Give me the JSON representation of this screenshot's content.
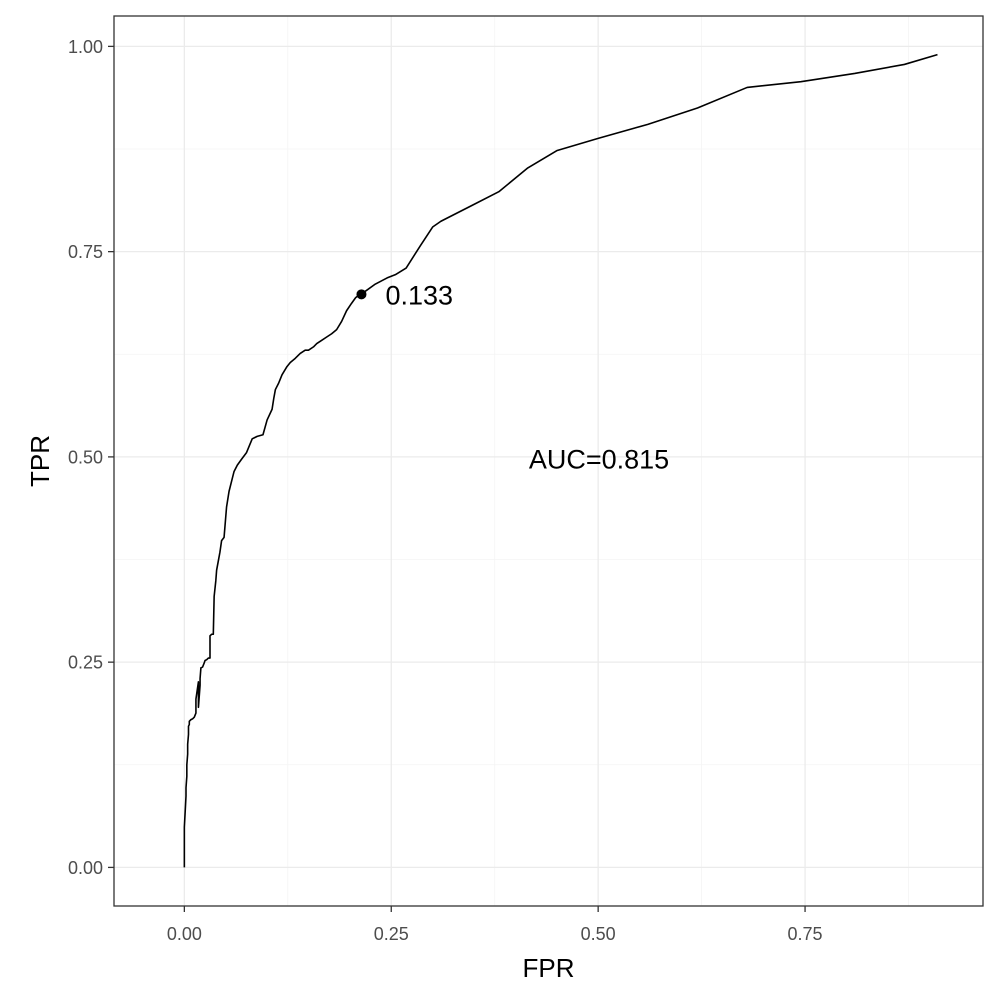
{
  "chart_data": {
    "type": "line",
    "title": "",
    "xlabel": "FPR",
    "ylabel": "TPR",
    "xlim": [
      -0.085,
      0.965
    ],
    "ylim": [
      -0.047,
      1.037
    ],
    "x_ticks": [
      0.0,
      0.25,
      0.5,
      0.75
    ],
    "x_tick_labels": [
      "0.00",
      "0.25",
      "0.50",
      "0.75"
    ],
    "y_ticks": [
      0.0,
      0.25,
      0.5,
      0.75,
      1.0
    ],
    "y_tick_labels": [
      "0.00",
      "0.25",
      "0.50",
      "0.75",
      "1.00"
    ],
    "grid": true,
    "series": [
      {
        "color": "#000000",
        "x": [
          0.0,
          0.0,
          0.001,
          0.002,
          0.002,
          0.003,
          0.003,
          0.004,
          0.004,
          0.005,
          0.005,
          0.006,
          0.006,
          0.008,
          0.01,
          0.012,
          0.014,
          0.014,
          0.015,
          0.017,
          0.017,
          0.019,
          0.019,
          0.02,
          0.022,
          0.024,
          0.025,
          0.027,
          0.029,
          0.031,
          0.031,
          0.032,
          0.033,
          0.035,
          0.036,
          0.038,
          0.039,
          0.041,
          0.043,
          0.045,
          0.048,
          0.051,
          0.054,
          0.058,
          0.06,
          0.064,
          0.069,
          0.075,
          0.082,
          0.088,
          0.095,
          0.1,
          0.106,
          0.108,
          0.11,
          0.114,
          0.118,
          0.124,
          0.128,
          0.134,
          0.14,
          0.146,
          0.15,
          0.156,
          0.16,
          0.166,
          0.172,
          0.178,
          0.184,
          0.19,
          0.196,
          0.202,
          0.207,
          0.212,
          0.214,
          0.219,
          0.23,
          0.245,
          0.255,
          0.268,
          0.285,
          0.3,
          0.31,
          0.345,
          0.38,
          0.415,
          0.45,
          0.5,
          0.56,
          0.62,
          0.68,
          0.745,
          0.81,
          0.87,
          0.91
        ],
        "y": [
          0.0,
          0.049,
          0.068,
          0.087,
          0.097,
          0.111,
          0.125,
          0.138,
          0.15,
          0.162,
          0.172,
          0.174,
          0.178,
          0.18,
          0.181,
          0.183,
          0.188,
          0.205,
          0.212,
          0.226,
          0.195,
          0.222,
          0.23,
          0.243,
          0.244,
          0.249,
          0.252,
          0.253,
          0.255,
          0.255,
          0.282,
          0.283,
          0.284,
          0.284,
          0.33,
          0.349,
          0.362,
          0.373,
          0.384,
          0.398,
          0.402,
          0.439,
          0.458,
          0.474,
          0.482,
          0.49,
          0.497,
          0.505,
          0.522,
          0.525,
          0.527,
          0.545,
          0.558,
          0.571,
          0.582,
          0.59,
          0.6,
          0.61,
          0.615,
          0.62,
          0.626,
          0.63,
          0.63,
          0.634,
          0.638,
          0.642,
          0.646,
          0.65,
          0.655,
          0.665,
          0.678,
          0.687,
          0.694,
          0.698,
          0.698,
          0.702,
          0.71,
          0.718,
          0.722,
          0.73,
          0.757,
          0.78,
          0.787,
          0.805,
          0.823,
          0.852,
          0.873,
          0.888,
          0.905,
          0.925,
          0.95,
          0.957,
          0.967,
          0.978,
          0.99
        ]
      }
    ],
    "points": [
      {
        "x": 0.214,
        "y": 0.698,
        "label": "0.133"
      }
    ],
    "annotations": [
      {
        "text": "AUC=0.815",
        "x": 0.501,
        "y": 0.498
      }
    ]
  }
}
